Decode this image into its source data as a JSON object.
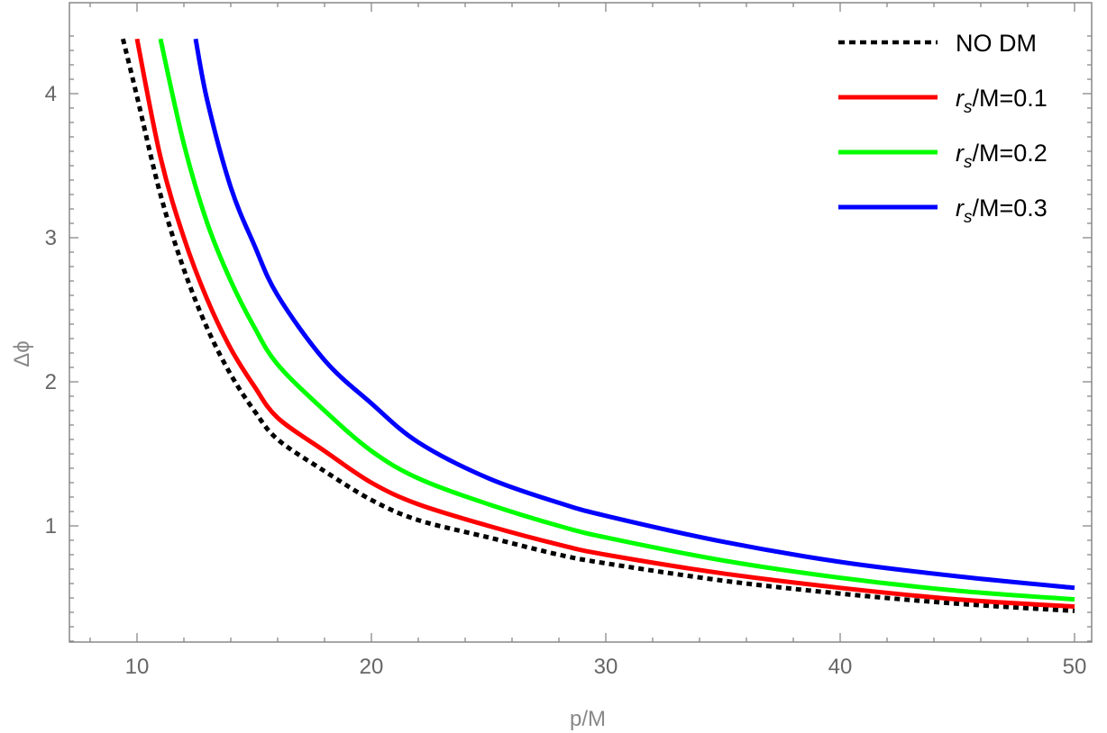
{
  "chart_data": {
    "type": "line",
    "title": "",
    "xlabel": "p/M",
    "ylabel": "Δϕ",
    "xlim": [
      7.0,
      51.0
    ],
    "ylim": [
      0.3,
      4.4
    ],
    "xticks": [
      10,
      20,
      30,
      40,
      50
    ],
    "xtick_labels": [
      "10",
      "20",
      "30",
      "40",
      "50"
    ],
    "yticks": [
      1,
      2,
      3,
      4
    ],
    "ytick_labels": [
      "1",
      "2",
      "3",
      "4"
    ],
    "grid": false,
    "legend_position": "top-right",
    "series": [
      {
        "name": "NO DM",
        "legend_main": "NO DM",
        "legend_sub": "",
        "legend_rest": "",
        "color": "#000000",
        "style": "dotted",
        "x": [
          9.4,
          10,
          11,
          12,
          13,
          14,
          15,
          16,
          18,
          20,
          22,
          25,
          28,
          30,
          35,
          40,
          45,
          50
        ],
        "y": [
          4.38,
          3.98,
          3.3,
          2.78,
          2.37,
          2.05,
          1.8,
          1.6,
          1.38,
          1.18,
          1.04,
          0.92,
          0.8,
          0.74,
          0.62,
          0.53,
          0.46,
          0.41
        ]
      },
      {
        "name": "r_s/M=0.1",
        "legend_main": "r",
        "legend_sub": "s",
        "legend_rest": "/M=0.1",
        "color": "#ff0000",
        "style": "solid",
        "x": [
          10,
          11,
          12,
          13,
          14,
          15,
          16,
          18,
          20,
          22,
          25,
          28,
          30,
          35,
          40,
          45,
          50
        ],
        "y": [
          4.38,
          3.56,
          3.0,
          2.57,
          2.23,
          1.97,
          1.75,
          1.52,
          1.3,
          1.15,
          1.0,
          0.87,
          0.8,
          0.67,
          0.57,
          0.49,
          0.44
        ]
      },
      {
        "name": "r_s/M=0.2",
        "legend_main": "r",
        "legend_sub": "s",
        "legend_rest": "/M=0.2",
        "color": "#00ff00",
        "style": "solid",
        "x": [
          11,
          12,
          13,
          14,
          15,
          16,
          18,
          20,
          22,
          25,
          28,
          30,
          35,
          40,
          45,
          50
        ],
        "y": [
          4.38,
          3.65,
          3.1,
          2.7,
          2.38,
          2.12,
          1.8,
          1.52,
          1.33,
          1.15,
          1.0,
          0.92,
          0.76,
          0.64,
          0.55,
          0.49
        ]
      },
      {
        "name": "r_s/M=0.3",
        "legend_main": "r",
        "legend_sub": "s",
        "legend_rest": "/M=0.3",
        "color": "#0000ff",
        "style": "solid",
        "x": [
          12.5,
          13,
          14,
          15,
          16,
          18,
          20,
          22,
          25,
          28,
          30,
          35,
          40,
          45,
          50
        ],
        "y": [
          4.38,
          3.95,
          3.35,
          2.95,
          2.6,
          2.15,
          1.85,
          1.58,
          1.33,
          1.16,
          1.07,
          0.89,
          0.75,
          0.65,
          0.57
        ]
      }
    ]
  }
}
